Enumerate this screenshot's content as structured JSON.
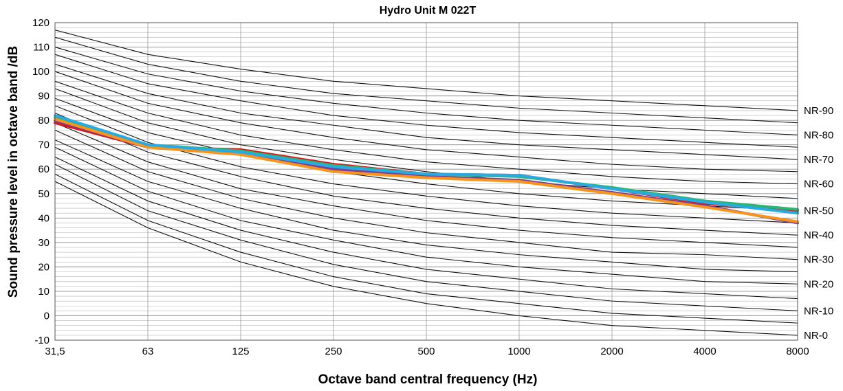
{
  "chart_data": {
    "type": "line",
    "title": "Hydro Unit M 022T",
    "xlabel": "Octave band central frequency (Hz)",
    "ylabel": "Sound pressure level in octave band /dB",
    "categories": [
      "31,5",
      "63",
      "125",
      "250",
      "500",
      "1000",
      "2000",
      "4000",
      "8000"
    ],
    "ylim": [
      -10,
      120
    ],
    "yticks": [
      -10,
      0,
      10,
      20,
      30,
      40,
      50,
      60,
      70,
      80,
      90,
      100,
      110,
      120
    ],
    "grid": true,
    "nr_curves": [
      {
        "label": "NR-0",
        "values": [
          55,
          36,
          22,
          12,
          5,
          0,
          -4,
          -6,
          -8
        ]
      },
      {
        "label": "",
        "values": [
          58,
          39,
          26,
          16,
          9,
          5,
          1,
          -1,
          -3
        ]
      },
      {
        "label": "NR-10",
        "values": [
          62,
          43,
          31,
          21,
          14,
          10,
          6,
          4,
          2
        ]
      },
      {
        "label": "",
        "values": [
          65,
          47,
          35,
          26,
          19,
          15,
          11,
          9,
          7
        ]
      },
      {
        "label": "NR-20",
        "values": [
          69,
          51,
          39,
          31,
          24,
          20,
          17,
          14,
          13
        ]
      },
      {
        "label": "",
        "values": [
          72,
          55,
          44,
          35,
          29,
          25,
          22,
          19,
          18
        ]
      },
      {
        "label": "NR-30",
        "values": [
          76,
          59,
          48,
          40,
          34,
          30,
          26,
          25,
          23
        ]
      },
      {
        "label": "",
        "values": [
          79,
          63,
          52,
          45,
          39,
          35,
          32,
          30,
          28
        ]
      },
      {
        "label": "NR-40",
        "values": [
          83,
          67,
          57,
          49,
          44,
          40,
          37,
          35,
          33
        ]
      },
      {
        "label": "",
        "values": [
          86,
          71,
          61,
          54,
          49,
          45,
          42,
          40,
          38
        ]
      },
      {
        "label": "NR-50",
        "values": [
          89,
          75,
          66,
          59,
          54,
          50,
          47,
          45,
          43
        ]
      },
      {
        "label": "",
        "values": [
          93,
          79,
          70,
          64,
          59,
          55,
          52,
          50,
          48
        ]
      },
      {
        "label": "NR-60",
        "values": [
          96,
          83,
          74,
          68,
          63,
          60,
          57,
          55,
          54
        ]
      },
      {
        "label": "",
        "values": [
          100,
          87,
          79,
          73,
          68,
          65,
          62,
          60,
          59
        ]
      },
      {
        "label": "NR-70",
        "values": [
          103,
          91,
          83,
          78,
          73,
          70,
          68,
          66,
          64
        ]
      },
      {
        "label": "",
        "values": [
          107,
          95,
          88,
          82,
          78,
          75,
          73,
          71,
          69
        ]
      },
      {
        "label": "NR-80",
        "values": [
          110,
          99,
          92,
          87,
          83,
          80,
          78,
          76,
          74
        ]
      },
      {
        "label": "",
        "values": [
          114,
          103,
          96,
          91,
          88,
          85,
          83,
          81,
          79
        ]
      },
      {
        "label": "NR-90",
        "values": [
          117,
          107,
          101,
          96,
          93,
          90,
          88,
          86,
          84
        ]
      }
    ],
    "series": [
      {
        "color": "#d7191c",
        "values": [
          79.0,
          69.0,
          68.0,
          62.0,
          58.0,
          57.5,
          52.0,
          46.0,
          43.0
        ]
      },
      {
        "color": "#7b3f98",
        "values": [
          80.0,
          69.0,
          67.0,
          60.0,
          57.0,
          55.5,
          50.5,
          45.0,
          38.0
        ]
      },
      {
        "color": "#2bb673",
        "values": [
          81.0,
          70.0,
          67.5,
          61.5,
          58.0,
          57.0,
          52.5,
          47.0,
          43.5
        ]
      },
      {
        "color": "#f7941d",
        "values": [
          80.5,
          69.0,
          66.0,
          59.0,
          56.5,
          55.0,
          50.0,
          44.5,
          38.5
        ]
      },
      {
        "color": "#29abe2",
        "values": [
          82.0,
          70.0,
          67.0,
          61.0,
          58.0,
          57.5,
          52.0,
          46.5,
          42.0
        ]
      }
    ]
  }
}
